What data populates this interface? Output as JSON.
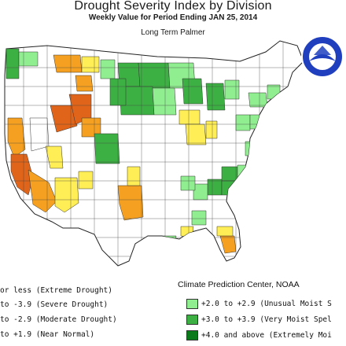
{
  "title": "Drought Severity Index by Division",
  "subtitle": "Weekly Value for Period Ending JAN 25, 2014",
  "index_name": "Long Term Palmer",
  "credit": "Climate Prediction Center, NOAA",
  "logo_text": "NOAA",
  "colors": {
    "extreme_drought": "#e0641a",
    "severe_drought": "#f5a020",
    "moderate_drought": "#ffcc00",
    "near_normal": "#ffffff",
    "unusual_moist": "#90ee90",
    "very_moist": "#3cb043",
    "extremely_moist": "#0a7a1a"
  },
  "legend": {
    "left": [
      {
        "label": "or less (Extreme Drought)",
        "color": "#e0641a"
      },
      {
        "label": "to -3.9 (Severe Drought)",
        "color": "#f5a020"
      },
      {
        "label": "to -2.9 (Moderate Drought)",
        "color": "#ffee55"
      },
      {
        "label": "to +1.9 (Near Normal)",
        "color": "#ffffff"
      }
    ],
    "right": [
      {
        "label": "+2.0 to +2.9 (Unusual Moist S",
        "color": "#90ee90"
      },
      {
        "label": "+3.0 to +3.9 (Very Moist Spel",
        "color": "#3cb043"
      },
      {
        "label": "+4.0 and above (Extremely Moi",
        "color": "#0a7a1a"
      }
    ]
  }
}
